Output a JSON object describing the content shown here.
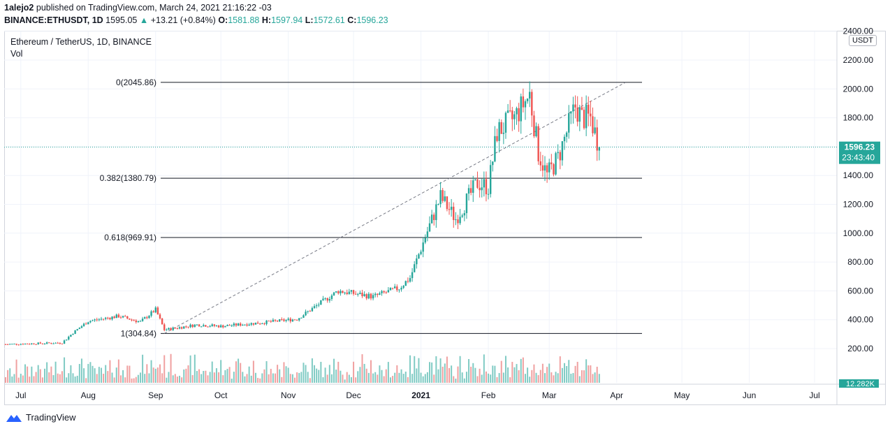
{
  "header": {
    "author": "1alejo2",
    "published_text": "published on TradingView.com, March 24, 2021 21:16:22 -03",
    "symbol": "BINANCE:ETHUSDT, 1D",
    "last": "1595.05",
    "change": "+13.21 (+0.84%)",
    "open_label": "O:",
    "open": "1581.88",
    "high_label": "H:",
    "high": "1597.94",
    "low_label": "L:",
    "low": "1572.61",
    "close_label": "C:",
    "close": "1596.23"
  },
  "legend": {
    "title": "Ethereum / TetherUS, 1D, BINANCE",
    "volume": "Vol"
  },
  "unit_label": "USDT",
  "footer": {
    "brand": "TradingView"
  },
  "colors": {
    "up": "#26a69a",
    "down": "#ef5350",
    "up_vol": "#80cbc4",
    "down_vol": "#f0a0a0",
    "price_line": "#26a69a",
    "fib": "#131722",
    "grid": "#f0f3fa"
  },
  "chart_data": {
    "type": "candlestick",
    "title": "Ethereum / TetherUS, 1D, BINANCE",
    "y_ticks": [
      "2400.00",
      "2200.00",
      "2000.00",
      "1800.00",
      "1600.00",
      "1400.00",
      "1200.00",
      "1000.00",
      "800.00",
      "600.00",
      "400.00",
      "200.00"
    ],
    "y_range": [
      0,
      2450
    ],
    "x_ticks": [
      "Jul",
      "Aug",
      "Sep",
      "Oct",
      "Nov",
      "Dec",
      "2021",
      "Feb",
      "Mar",
      "Apr",
      "May",
      "Jun",
      "Jul"
    ],
    "current_price": {
      "value": "1596.23",
      "countdown": "23:43:40"
    },
    "volume_tag": "12.282K",
    "fib_levels": [
      {
        "label": "0(2045.86)",
        "value": 2045.86
      },
      {
        "label": "0.382(1380.79)",
        "value": 1380.79
      },
      {
        "label": "0.618(969.91)",
        "value": 969.91
      },
      {
        "label": "1(304.84)",
        "value": 304.84
      }
    ],
    "trendline": {
      "from": {
        "date": "2020-09-05",
        "price": 305
      },
      "to": {
        "date": "2021-04-05",
        "price": 2045
      }
    },
    "price_path": [
      [
        "2020-06-24",
        230
      ],
      [
        "2020-07-20",
        240
      ],
      [
        "2020-07-25",
        310
      ],
      [
        "2020-08-01",
        390
      ],
      [
        "2020-08-15",
        425
      ],
      [
        "2020-08-25",
        385
      ],
      [
        "2020-09-01",
        470
      ],
      [
        "2020-09-05",
        330
      ],
      [
        "2020-09-20",
        365
      ],
      [
        "2020-10-01",
        355
      ],
      [
        "2020-10-20",
        380
      ],
      [
        "2020-11-05",
        405
      ],
      [
        "2020-11-24",
        600
      ],
      [
        "2020-12-10",
        560
      ],
      [
        "2020-12-22",
        620
      ],
      [
        "2020-12-27",
        690
      ],
      [
        "2021-01-03",
        975
      ],
      [
        "2021-01-10",
        1250
      ],
      [
        "2021-01-17",
        1100
      ],
      [
        "2021-01-27",
        1350
      ],
      [
        "2021-02-01",
        1320
      ],
      [
        "2021-02-05",
        1700
      ],
      [
        "2021-02-13",
        1800
      ],
      [
        "2021-02-20",
        1960
      ],
      [
        "2021-02-24",
        1560
      ],
      [
        "2021-02-28",
        1400
      ],
      [
        "2021-03-05",
        1520
      ],
      [
        "2021-03-13",
        1880
      ],
      [
        "2021-03-16",
        1800
      ],
      [
        "2021-03-20",
        1800
      ],
      [
        "2021-03-24",
        1596
      ]
    ]
  }
}
